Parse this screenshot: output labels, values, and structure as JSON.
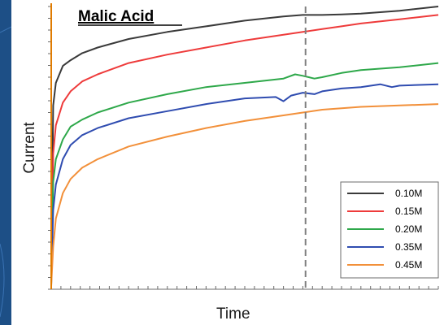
{
  "chart_data": {
    "type": "line",
    "title": "Malic Acid",
    "xlabel": "Time",
    "ylabel": "Current",
    "xlim": [
      0,
      10
    ],
    "ylim": [
      0,
      10
    ],
    "x_tick_labels": false,
    "y_tick_labels": false,
    "grid": false,
    "legend": "bottom-right",
    "vline_x": 6.57,
    "colors": {
      "background": "#1d4f86",
      "panel": "#ffffff",
      "y_axis": "#e07b00",
      "vline": "#7f7f7f"
    },
    "series": [
      {
        "name": "0.10M",
        "color": "#3a3a3a",
        "x": [
          0,
          0.05,
          0.12,
          0.3,
          0.5,
          0.8,
          1.2,
          2,
          3,
          4,
          5,
          6,
          6.5,
          7,
          7.5,
          8,
          9,
          10
        ],
        "y": [
          0.5,
          6.5,
          7.3,
          7.9,
          8.1,
          8.35,
          8.55,
          8.85,
          9.1,
          9.3,
          9.5,
          9.65,
          9.7,
          9.7,
          9.72,
          9.75,
          9.85,
          10.0
        ]
      },
      {
        "name": "0.15M",
        "color": "#ee3b3b",
        "x": [
          0,
          0.05,
          0.12,
          0.3,
          0.5,
          0.8,
          1.2,
          2,
          3,
          4,
          5,
          6,
          6.5,
          7,
          7.5,
          8,
          9,
          10
        ],
        "y": [
          0.3,
          4.8,
          5.8,
          6.6,
          7.0,
          7.35,
          7.6,
          8.0,
          8.3,
          8.55,
          8.8,
          9.0,
          9.1,
          9.2,
          9.3,
          9.4,
          9.55,
          9.7
        ]
      },
      {
        "name": "0.20M",
        "color": "#2ea84a",
        "x": [
          0,
          0.05,
          0.12,
          0.3,
          0.5,
          0.8,
          1.2,
          2,
          3,
          4,
          5,
          6,
          6.3,
          6.5,
          6.8,
          7,
          7.5,
          8,
          9,
          10
        ],
        "y": [
          0.2,
          3.8,
          4.6,
          5.3,
          5.75,
          6.0,
          6.25,
          6.6,
          6.9,
          7.15,
          7.3,
          7.45,
          7.6,
          7.55,
          7.45,
          7.5,
          7.65,
          7.75,
          7.85,
          8.0
        ]
      },
      {
        "name": "0.35M",
        "color": "#2f4cb0",
        "x": [
          0,
          0.05,
          0.12,
          0.3,
          0.5,
          0.8,
          1.2,
          2,
          3,
          4,
          5,
          5.8,
          6.0,
          6.2,
          6.5,
          6.8,
          7,
          7.5,
          8,
          8.5,
          8.8,
          9,
          10
        ],
        "y": [
          0.15,
          2.8,
          3.7,
          4.6,
          5.1,
          5.45,
          5.7,
          6.05,
          6.3,
          6.55,
          6.75,
          6.8,
          6.65,
          6.85,
          6.95,
          6.9,
          7.0,
          7.1,
          7.15,
          7.25,
          7.15,
          7.2,
          7.25
        ]
      },
      {
        "name": "0.45M",
        "color": "#f2903a",
        "x": [
          0,
          0.05,
          0.12,
          0.3,
          0.5,
          0.8,
          1.2,
          2,
          3,
          4,
          5,
          6,
          6.5,
          7,
          7.5,
          8,
          9,
          10
        ],
        "y": [
          0.1,
          1.5,
          2.5,
          3.4,
          3.9,
          4.3,
          4.6,
          5.05,
          5.4,
          5.7,
          5.95,
          6.15,
          6.25,
          6.35,
          6.4,
          6.45,
          6.5,
          6.55
        ]
      }
    ]
  }
}
